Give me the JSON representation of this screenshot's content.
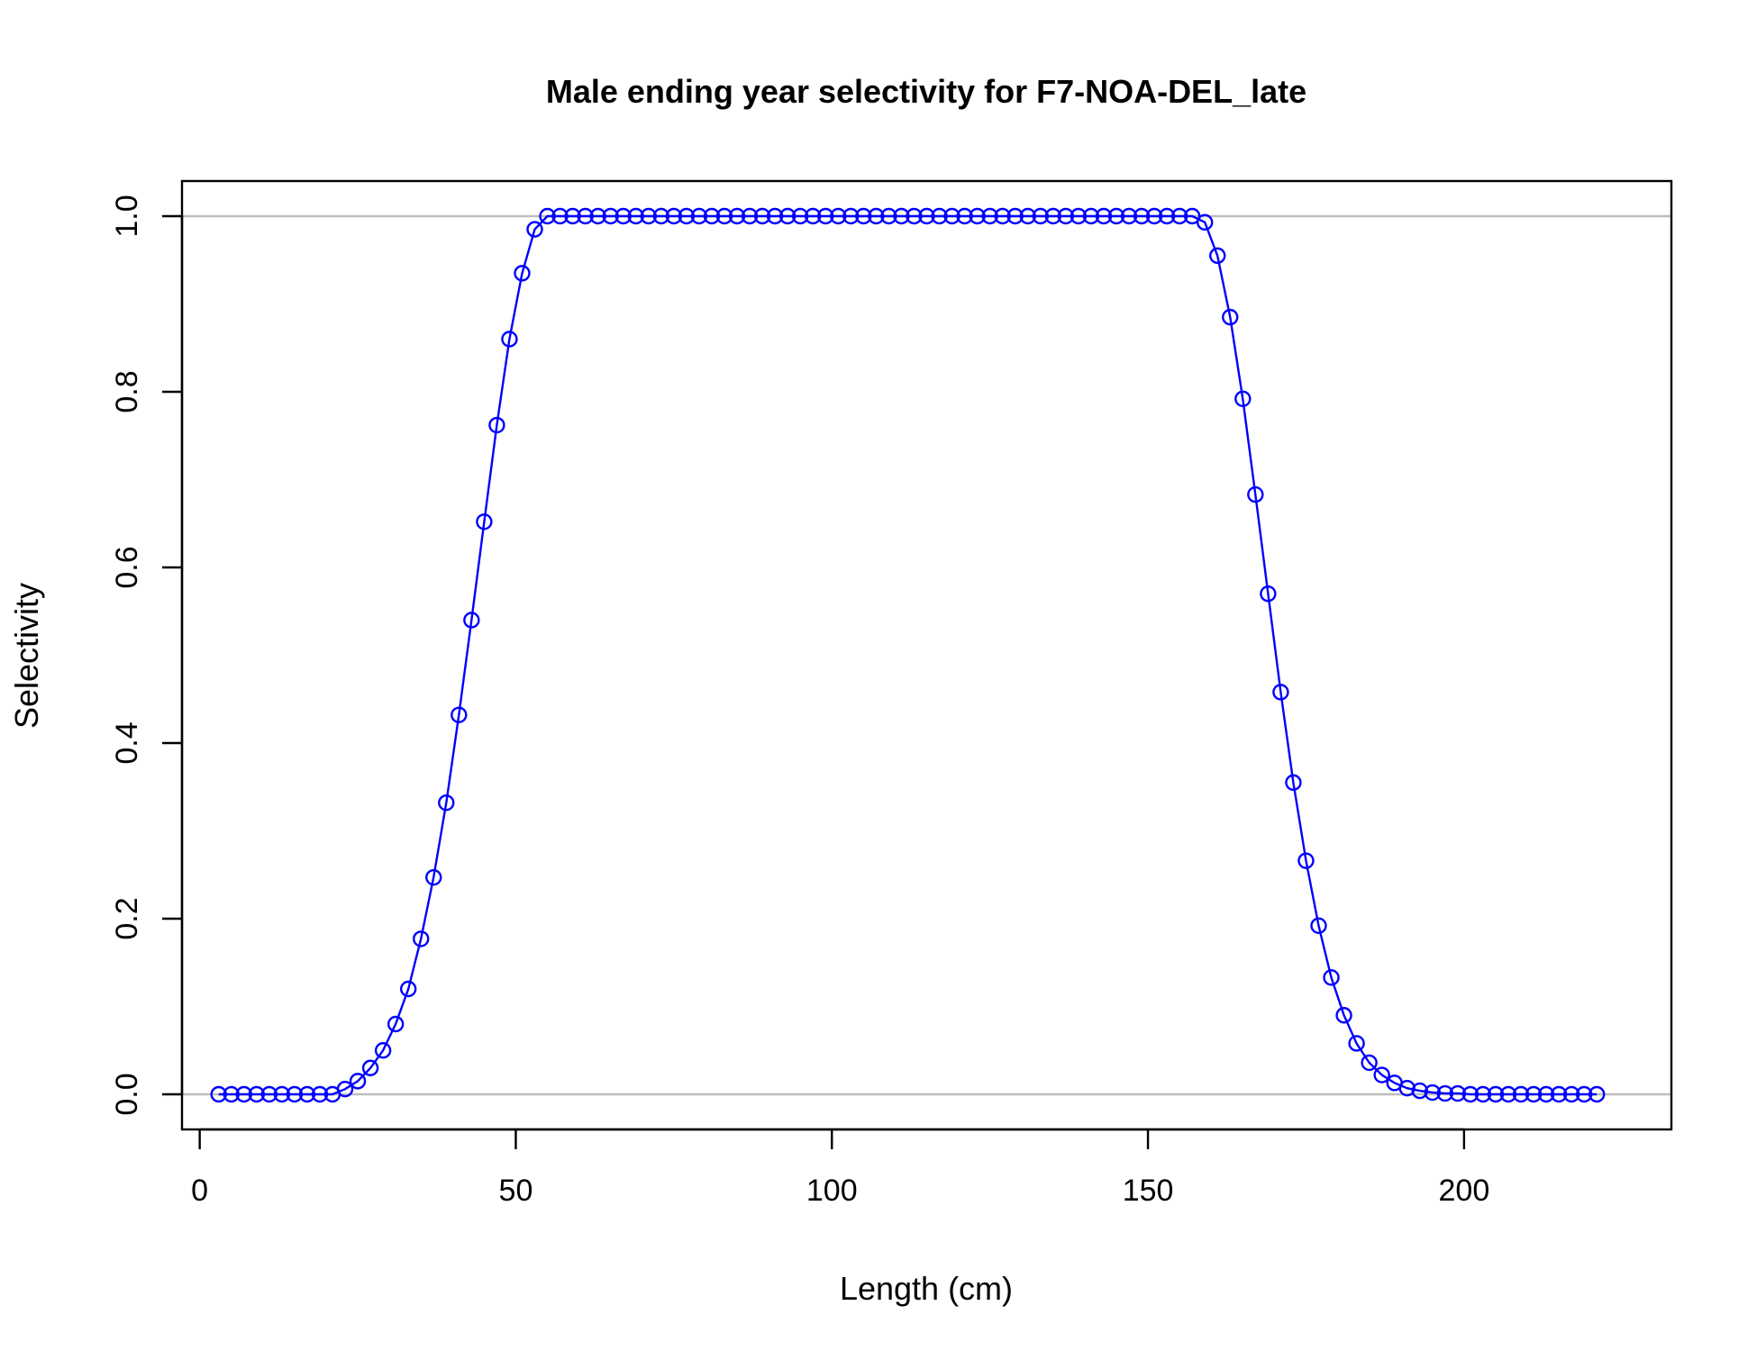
{
  "chart_data": {
    "type": "line",
    "title": "Male ending year selectivity for F7-NOA-DEL_late",
    "xlabel": "Length (cm)",
    "ylabel": "Selectivity",
    "xlim": [
      -2.8,
      232.8
    ],
    "ylim": [
      -0.04,
      1.04
    ],
    "x_ticks": [
      0,
      50,
      100,
      150,
      200
    ],
    "y_ticks": [
      0.0,
      0.2,
      0.4,
      0.6,
      0.8,
      1.0
    ],
    "x_tick_labels": [
      "0",
      "50",
      "100",
      "150",
      "200"
    ],
    "y_tick_labels": [
      "0.0",
      "0.2",
      "0.4",
      "0.6",
      "0.8",
      "1.0"
    ],
    "reference_lines": [
      0,
      1
    ],
    "grid": false,
    "colors": {
      "series": "#0000ff",
      "reference": "#bebebe",
      "axis": "#000000"
    },
    "series": [
      {
        "x": [
          3,
          5,
          7,
          9,
          11,
          13,
          15,
          17,
          19,
          21,
          23,
          25,
          27,
          29,
          31,
          33,
          35,
          37,
          39,
          41,
          43,
          45,
          47,
          49,
          51,
          53,
          55,
          57,
          59,
          61,
          63,
          65,
          67,
          69,
          71,
          73,
          75,
          77,
          79,
          81,
          83,
          85,
          87,
          89,
          91,
          93,
          95,
          97,
          99,
          101,
          103,
          105,
          107,
          109,
          111,
          113,
          115,
          117,
          119,
          121,
          123,
          125,
          127,
          129,
          131,
          133,
          135,
          137,
          139,
          141,
          143,
          145,
          147,
          149,
          151,
          153,
          155,
          157,
          159,
          161,
          163,
          165,
          167,
          169,
          171,
          173,
          175,
          177,
          179,
          181,
          183,
          185,
          187,
          189,
          191,
          193,
          195,
          197,
          199,
          201,
          203,
          205,
          207,
          209,
          211,
          213,
          215,
          217,
          219,
          221
        ],
        "y": [
          0,
          0,
          0,
          0,
          0,
          0,
          0,
          0,
          0,
          0,
          0.006,
          0.015,
          0.03,
          0.05,
          0.08,
          0.12,
          0.177,
          0.247,
          0.332,
          0.432,
          0.54,
          0.652,
          0.762,
          0.86,
          0.935,
          0.985,
          1,
          1,
          1,
          1,
          1,
          1,
          1,
          1,
          1,
          1,
          1,
          1,
          1,
          1,
          1,
          1,
          1,
          1,
          1,
          1,
          1,
          1,
          1,
          1,
          1,
          1,
          1,
          1,
          1,
          1,
          1,
          1,
          1,
          1,
          1,
          1,
          1,
          1,
          1,
          1,
          1,
          1,
          1,
          1,
          1,
          1,
          1,
          1,
          1,
          1,
          1,
          1,
          0.993,
          0.955,
          0.885,
          0.792,
          0.683,
          0.57,
          0.458,
          0.355,
          0.266,
          0.192,
          0.133,
          0.09,
          0.058,
          0.036,
          0.022,
          0.013,
          0.007,
          0.004,
          0.002,
          0.001,
          0.001,
          0,
          0,
          0,
          0,
          0,
          0,
          0,
          0,
          0,
          0,
          0
        ]
      }
    ]
  }
}
